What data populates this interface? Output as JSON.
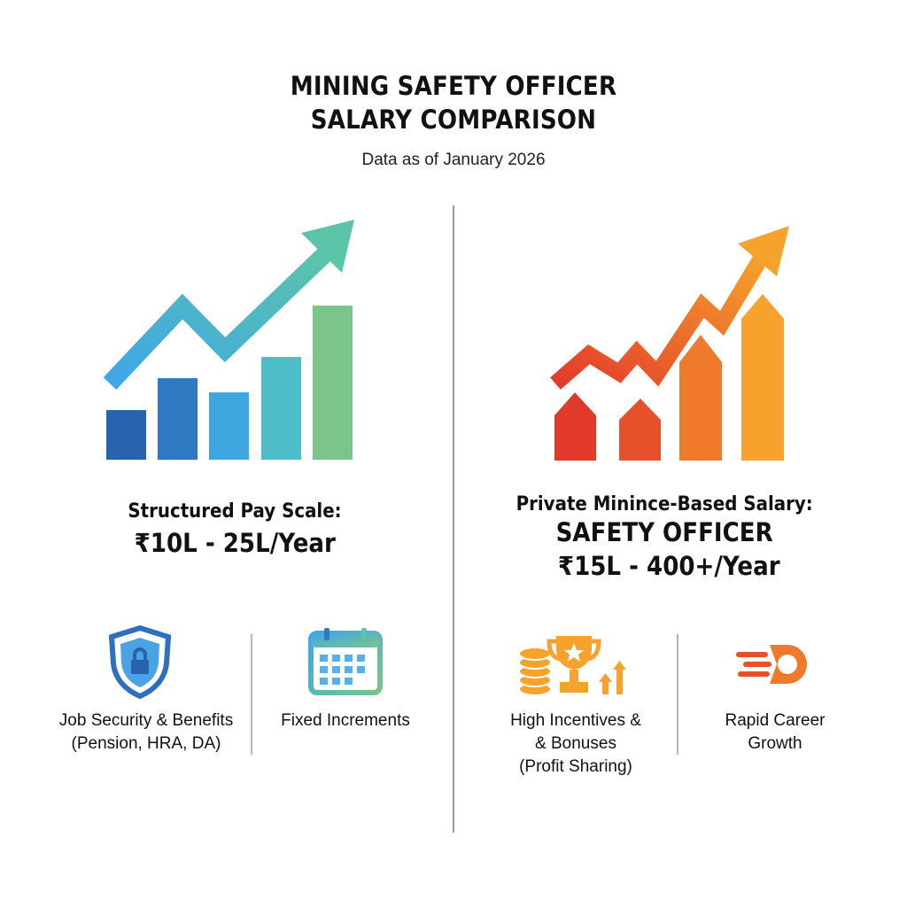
{
  "header": {
    "title_line1": "MINING SAFETY OFFICER",
    "title_line2": "SALARY COMPARISON",
    "subtitle": "Data as of January 2026"
  },
  "left": {
    "pay_label": "Structured Pay Scale:",
    "pay_range": "₹10L - 25L/Year",
    "features": [
      {
        "icon": "shield-lock-icon",
        "line1": "Job Security & Benefits",
        "line2": "(Pension, HRA, DA)"
      },
      {
        "icon": "calendar-icon",
        "line1": "Fixed Increments"
      }
    ],
    "colors": [
      "#2a63ad",
      "#2f79c0",
      "#3fa7df",
      "#4dbdc7",
      "#7cc58a"
    ]
  },
  "right": {
    "pay_label": "Private Minince-Based Salary:",
    "pay_title": "SAFETY OFFICER",
    "pay_range": "₹15L - 400+/Year",
    "features": [
      {
        "icon": "coins-trophy-icon",
        "line1": "High Incentives &",
        "line2": "& Bonuses",
        "line3": "(Profit Sharing)"
      },
      {
        "icon": "speed-rocket-icon",
        "line1": "Rapid Career",
        "line2": "Growth"
      }
    ],
    "colors": [
      "#e23a2a",
      "#e8502c",
      "#f07a2c",
      "#f6a22c"
    ]
  }
}
